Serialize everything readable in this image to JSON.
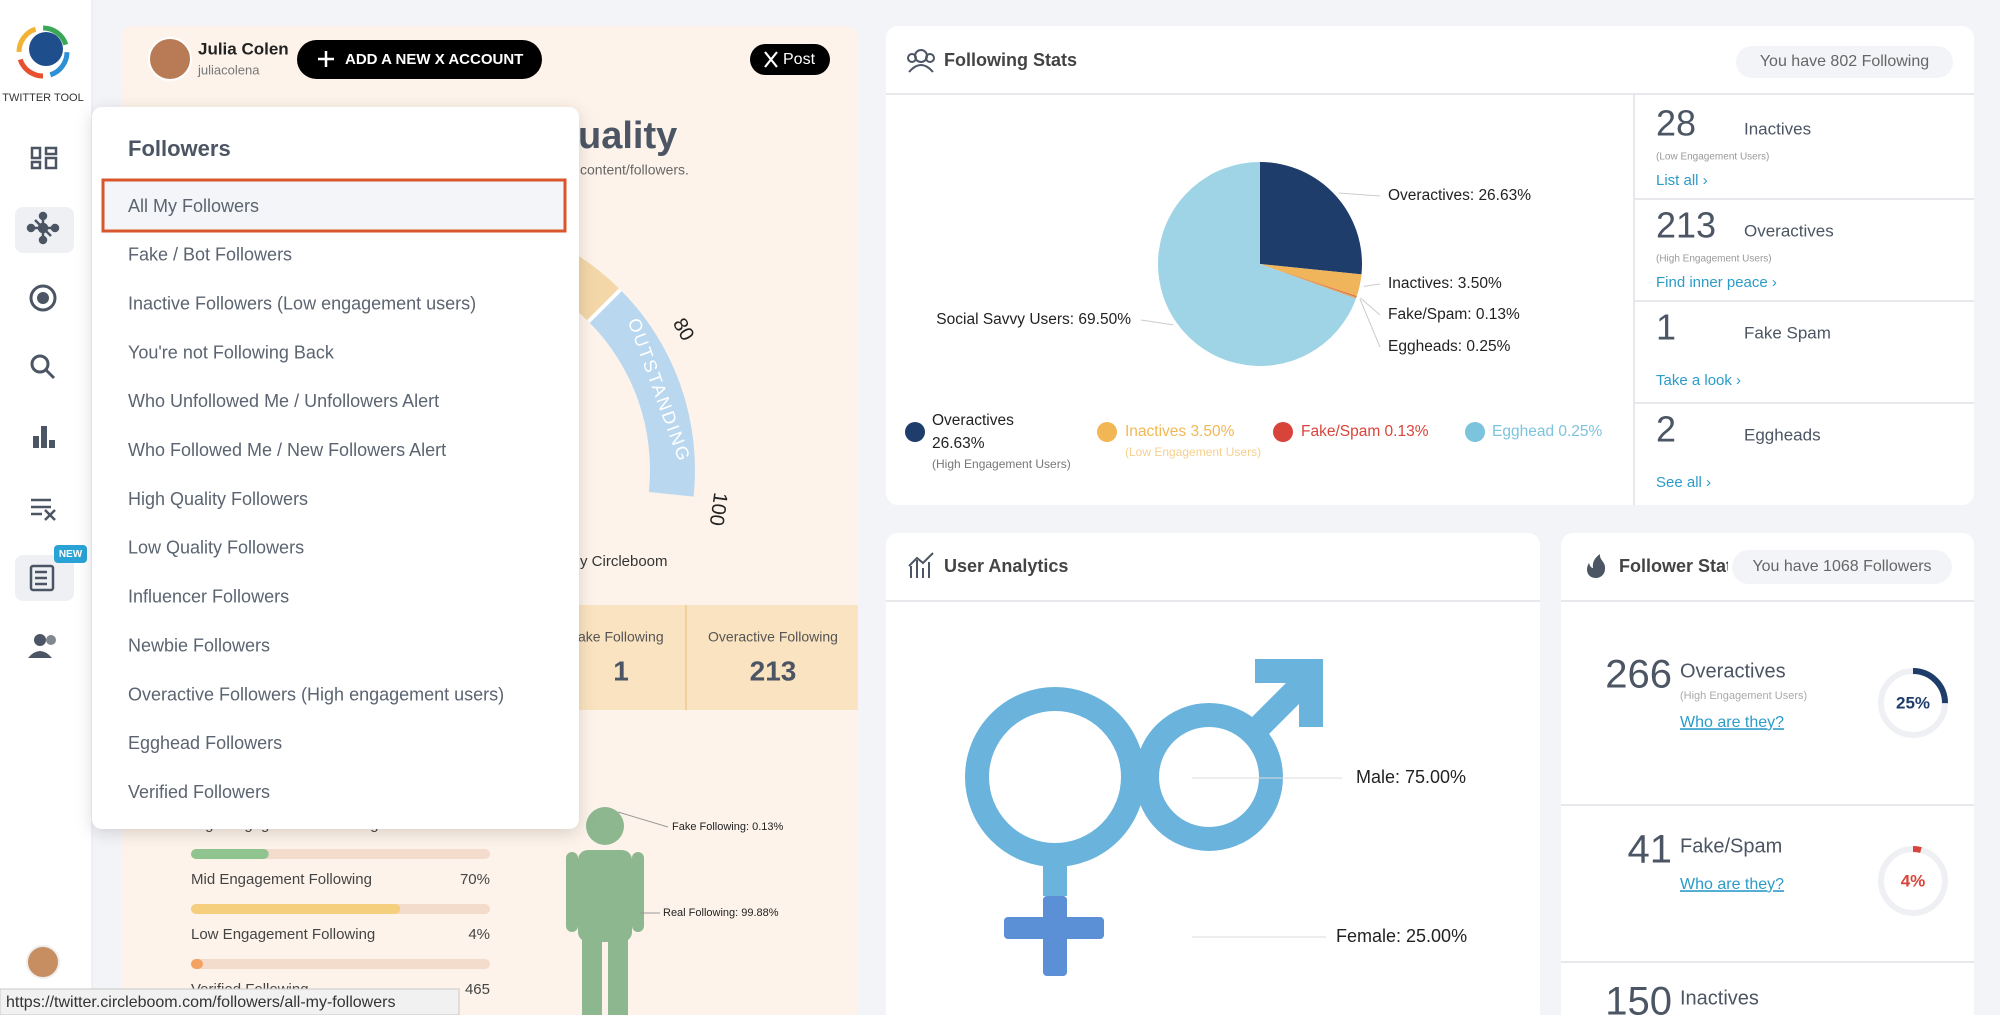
{
  "sidebar": {
    "brand": "TWITTER TOOL",
    "badge": "NEW"
  },
  "account": {
    "name": "Julia Colen",
    "handle": "juliacolena",
    "add_button": "ADD A NEW X ACCOUNT",
    "post_button": "Post"
  },
  "followers_menu": {
    "title": "Followers",
    "selected": 0,
    "items": [
      "All My Followers",
      "Fake / Bot Followers",
      "Inactive Followers (Low engagement users)",
      "You're not Following Back",
      "Who Unfollowed Me / Unfollowers Alert",
      "Who Followed Me / New Followers Alert",
      "High Quality Followers",
      "Low Quality Followers",
      "Influencer Followers",
      "Newbie Followers",
      "Overactive Followers (High engagement users)",
      "Egghead Followers",
      "Verified Followers"
    ]
  },
  "quality_panel": {
    "heading": "uality",
    "subtitle": "content/followers.",
    "gauge": {
      "band": "OUTSTANDING",
      "ticks": [
        80,
        100
      ]
    },
    "credit": "y Circleboom",
    "stats": [
      {
        "label": "ake Following",
        "value": 1
      },
      {
        "label": "Overactive Following",
        "value": 213
      }
    ],
    "bars": [
      {
        "label": "High Engagement Following",
        "value": 26,
        "color": "#8fc48f"
      },
      {
        "label": "Mid Engagement Following",
        "value": 70,
        "value_label": "70%",
        "color": "#f5cf7e"
      },
      {
        "label": "Low Engagement Following",
        "value": 4,
        "value_label": "4%",
        "color": "#f4a261"
      }
    ],
    "verified": {
      "label": "Verified Following",
      "value": 465
    },
    "figure": {
      "fake_label": "Fake Following: 0.13%",
      "real_label": "Real Following: 99.88%"
    }
  },
  "following_stats": {
    "title": "Following Stats",
    "pill": "You have 802 Following",
    "chart": {
      "type": "pie",
      "labels": [
        "Overactives: 26.63%",
        "Inactives: 3.50%",
        "Fake/Spam: 0.13%",
        "Eggheads: 0.25%",
        "Social Savvy Users: 69.50%"
      ],
      "values": [
        26.63,
        3.5,
        0.13,
        0.25,
        69.5
      ],
      "colors": [
        "#1f3d6b",
        "#f0b45a",
        "#e24b3b",
        "#d9a860",
        "#9fd4e6"
      ]
    },
    "legend": [
      {
        "name": "Overactives",
        "value": "26.63%",
        "note": "(High Engagement Users)",
        "color": "#1f3d6b"
      },
      {
        "name": "Inactives 3.50%",
        "note": "(Low Engagement Users)",
        "color": "#f2b755"
      },
      {
        "name": "Fake/Spam 0.13%",
        "color": "#d9443a"
      },
      {
        "name": "Egghead 0.25%",
        "color": "#7cc3dd"
      }
    ],
    "cells": [
      {
        "count": 28,
        "label": "Inactives",
        "note": "(Low Engagement Users)",
        "link": "List all ›"
      },
      {
        "count": 213,
        "label": "Overactives",
        "note": "(High Engagement Users)",
        "link": "Find inner peace ›"
      },
      {
        "count": 1,
        "label": "Fake Spam",
        "link": "Take a look ›"
      },
      {
        "count": 2,
        "label": "Eggheads",
        "link": "See all ›"
      }
    ]
  },
  "user_analytics": {
    "title": "User Analytics",
    "gender": {
      "labels": [
        "Male: 75.00%",
        "Female: 25.00%"
      ],
      "values": [
        75,
        25
      ]
    }
  },
  "follower_stats": {
    "title": "Follower Stats",
    "pill": "You have 1068 Followers",
    "items": [
      {
        "count": 266,
        "label": "Overactives",
        "note": "(High Engagement Users)",
        "link": "Who are they?",
        "percent": 25,
        "percent_label": "25%",
        "color": "#1f3d6b"
      },
      {
        "count": 41,
        "label": "Fake/Spam",
        "link": "Who are they?",
        "percent": 4,
        "percent_label": "4%",
        "color": "#d9443a"
      },
      {
        "count": 150,
        "label": "Inactives"
      }
    ]
  },
  "status_url": "https://twitter.circleboom.com/followers/all-my-followers"
}
